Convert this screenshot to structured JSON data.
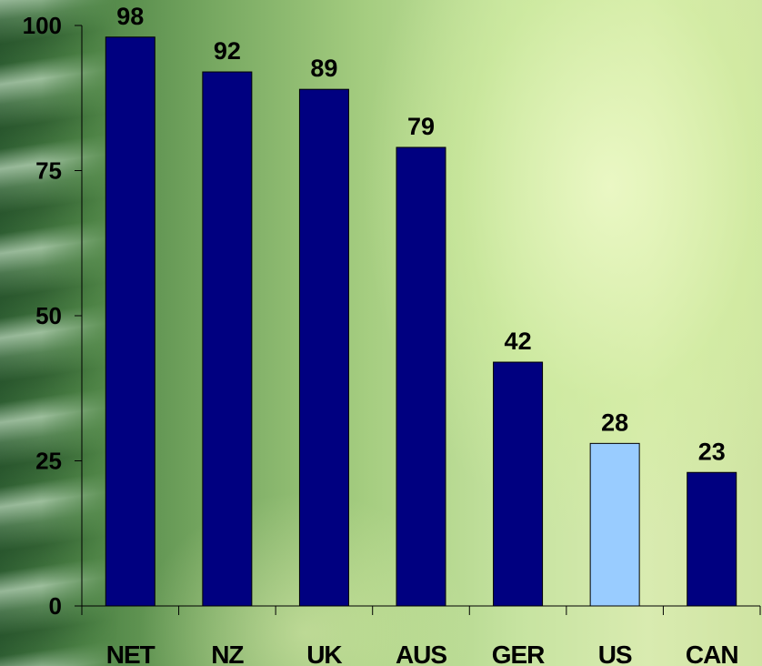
{
  "chart_data": {
    "type": "bar",
    "categories": [
      "NET",
      "NZ",
      "UK",
      "AUS",
      "GER",
      "US",
      "CAN"
    ],
    "values": [
      98,
      92,
      89,
      79,
      42,
      28,
      23
    ],
    "data_labels": [
      "98",
      "92",
      "89",
      "79",
      "42",
      "28",
      "23"
    ],
    "ylim": [
      0,
      100
    ],
    "yticks": [
      "0",
      "25",
      "50",
      "75",
      "100"
    ],
    "ytick_values": [
      0,
      25,
      50,
      75,
      100
    ],
    "grid": false,
    "legend": "none",
    "colors": {
      "bar": "#000080",
      "highlight_bar": "#99ccff",
      "axis": "#000000"
    },
    "highlight_category": "US"
  }
}
